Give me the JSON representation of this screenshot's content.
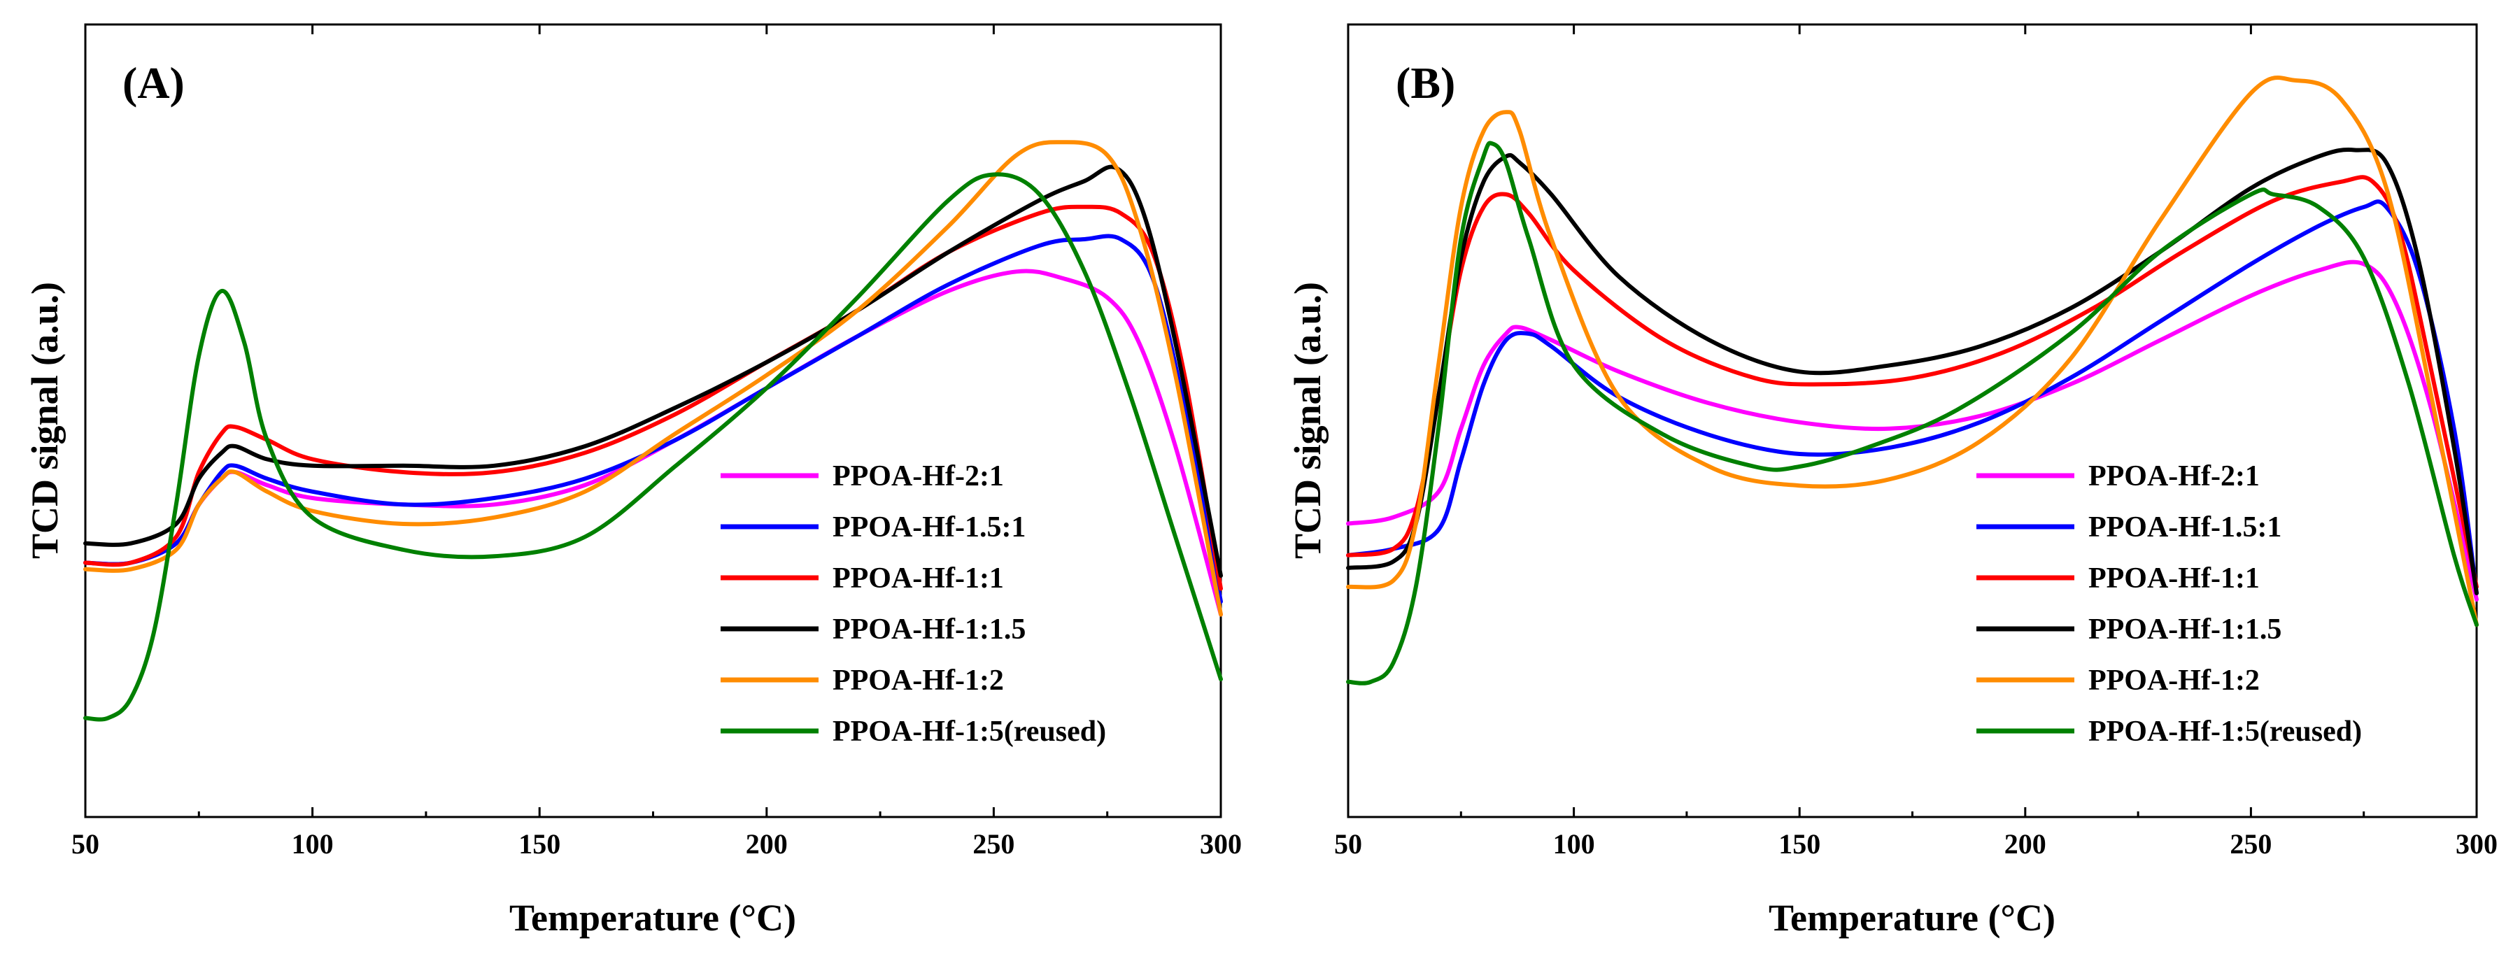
{
  "chart_data": [
    {
      "type": "line",
      "panel_label": "(A)",
      "xlabel": "Temperature (°C)",
      "ylabel": "TCD signal (a.u.)",
      "xlim": [
        50,
        300
      ],
      "ylim": [
        0,
        100
      ],
      "xticks": [
        50,
        100,
        150,
        200,
        250,
        300
      ],
      "xtick_labels": [
        "50",
        "100",
        "150",
        "200",
        "250",
        "300"
      ],
      "yticks_shown": false,
      "legend_position": "bottom-right",
      "series": [
        {
          "name": "PPOA-Hf-2:1",
          "color": "#ff00ff",
          "x": [
            50,
            60,
            70,
            75,
            80,
            83,
            90,
            100,
            120,
            140,
            160,
            180,
            200,
            220,
            240,
            255,
            265,
            275,
            282,
            290,
            300
          ],
          "y": [
            26,
            26,
            29,
            35,
            39,
            40,
            38,
            36,
            35,
            35,
            38,
            45,
            53,
            61,
            68,
            71,
            70,
            67,
            60,
            44,
            18
          ]
        },
        {
          "name": "PPOA-Hf-1.5:1",
          "color": "#0000ff",
          "x": [
            50,
            60,
            70,
            75,
            80,
            83,
            90,
            100,
            120,
            140,
            160,
            180,
            200,
            220,
            240,
            260,
            270,
            278,
            285,
            292,
            300
          ],
          "y": [
            26,
            26,
            29,
            35,
            40,
            41,
            39,
            37,
            35,
            36,
            39,
            45,
            53,
            61,
            69,
            75,
            76,
            76,
            70,
            50,
            20
          ]
        },
        {
          "name": "PPOA-Hf-1:1",
          "color": "#ff0000",
          "x": [
            50,
            60,
            70,
            75,
            80,
            83,
            90,
            100,
            120,
            140,
            160,
            180,
            200,
            220,
            240,
            260,
            270,
            278,
            285,
            292,
            300
          ],
          "y": [
            26,
            26,
            30,
            40,
            46,
            47,
            45,
            42,
            40,
            40,
            43,
            49,
            57,
            65,
            74,
            80,
            81,
            80,
            74,
            55,
            22
          ]
        },
        {
          "name": "PPOA-Hf-1:1.5",
          "color": "#000000",
          "x": [
            50,
            60,
            70,
            75,
            80,
            83,
            90,
            100,
            120,
            140,
            160,
            180,
            200,
            220,
            240,
            260,
            270,
            277,
            283,
            290,
            300
          ],
          "y": [
            29,
            29,
            32,
            39,
            43,
            44,
            42,
            41,
            41,
            41,
            44,
            50,
            57,
            65,
            74,
            82,
            85,
            87,
            80,
            60,
            24
          ]
        },
        {
          "name": "PPOA-Hf-1:2",
          "color": "#ff8c00",
          "x": [
            50,
            60,
            70,
            75,
            80,
            83,
            90,
            100,
            120,
            140,
            160,
            180,
            200,
            220,
            240,
            255,
            265,
            275,
            282,
            290,
            300
          ],
          "y": [
            25,
            25,
            28,
            35,
            39,
            40,
            37,
            34,
            32,
            33,
            37,
            46,
            55,
            65,
            78,
            89,
            91,
            89,
            78,
            55,
            18
          ]
        },
        {
          "name": "PPOA-Hf-1:5(reused)",
          "color": "#008000",
          "x": [
            50,
            55,
            60,
            65,
            70,
            75,
            80,
            85,
            90,
            100,
            120,
            140,
            160,
            180,
            200,
            220,
            240,
            250,
            260,
            270,
            280,
            290,
            300
          ],
          "y": [
            2,
            2,
            5,
            15,
            35,
            58,
            68,
            60,
            45,
            33,
            28,
            27,
            30,
            41,
            53,
            67,
            82,
            86,
            83,
            71,
            52,
            30,
            8
          ]
        }
      ]
    },
    {
      "type": "line",
      "panel_label": "(B)",
      "xlabel": "Temperature (°C)",
      "ylabel": "TCD signal (a.u.)",
      "xlim": [
        50,
        300
      ],
      "ylim": [
        0,
        100
      ],
      "xticks": [
        50,
        100,
        150,
        200,
        250,
        300
      ],
      "xtick_labels": [
        "50",
        "100",
        "150",
        "200",
        "250",
        "300"
      ],
      "yticks_shown": false,
      "legend_position": "bottom-right",
      "series": [
        {
          "name": "PPOA-Hf-2:1",
          "color": "#ff00ff",
          "x": [
            50,
            60,
            70,
            75,
            80,
            85,
            88,
            95,
            110,
            130,
            150,
            170,
            190,
            210,
            230,
            250,
            265,
            275,
            282,
            290,
            300
          ],
          "y": [
            30,
            31,
            35,
            45,
            55,
            60,
            61,
            59,
            54,
            49,
            46,
            45,
            47,
            52,
            59,
            66,
            70,
            71,
            65,
            48,
            18
          ]
        },
        {
          "name": "PPOA-Hf-1.5:1",
          "color": "#0000ff",
          "x": [
            50,
            60,
            70,
            75,
            80,
            85,
            90,
            95,
            110,
            130,
            150,
            170,
            190,
            210,
            230,
            250,
            265,
            275,
            280,
            287,
            295,
            300
          ],
          "y": [
            25,
            26,
            29,
            40,
            52,
            59,
            60,
            58,
            50,
            44,
            41,
            42,
            46,
            53,
            62,
            71,
            77,
            80,
            80,
            70,
            45,
            19
          ]
        },
        {
          "name": "PPOA-Hf-1:1",
          "color": "#ff0000",
          "x": [
            50,
            60,
            65,
            70,
            75,
            80,
            85,
            90,
            100,
            120,
            140,
            155,
            175,
            195,
            215,
            235,
            255,
            270,
            277,
            283,
            290,
            300
          ],
          "y": [
            25,
            26,
            32,
            50,
            70,
            80,
            82,
            79,
            70,
            59,
            53,
            52,
            53,
            57,
            64,
            73,
            81,
            84,
            84,
            76,
            54,
            20
          ]
        },
        {
          "name": "PPOA-Hf-1:1.5",
          "color": "#000000",
          "x": [
            50,
            60,
            65,
            70,
            75,
            80,
            85,
            88,
            95,
            110,
            130,
            150,
            170,
            190,
            210,
            230,
            250,
            265,
            273,
            280,
            287,
            295,
            300
          ],
          "y": [
            23,
            24,
            30,
            50,
            72,
            84,
            88,
            87,
            82,
            69,
            59,
            54,
            55,
            58,
            64,
            73,
            83,
            88,
            89,
            87,
            72,
            42,
            19
          ]
        },
        {
          "name": "PPOA-Hf-1:2",
          "color": "#ff8c00",
          "x": [
            50,
            60,
            65,
            70,
            75,
            80,
            85,
            88,
            95,
            110,
            130,
            150,
            170,
            190,
            210,
            230,
            250,
            260,
            270,
            280,
            290,
            300
          ],
          "y": [
            20,
            21,
            30,
            55,
            80,
            92,
            95,
            92,
            75,
            50,
            39,
            36,
            37,
            43,
            56,
            78,
            98,
            100,
            97,
            83,
            50,
            14
          ]
        },
        {
          "name": "PPOA-Hf-1:5(reused)",
          "color": "#008000",
          "x": [
            50,
            55,
            60,
            65,
            70,
            75,
            80,
            82,
            85,
            90,
            100,
            120,
            140,
            150,
            165,
            185,
            210,
            230,
            250,
            255,
            265,
            275,
            285,
            295,
            300
          ],
          "y": [
            5,
            5,
            8,
            20,
            45,
            75,
            88,
            90,
            87,
            75,
            55,
            44,
            39,
            39,
            42,
            48,
            60,
            73,
            82,
            82,
            80,
            72,
            52,
            25,
            14
          ]
        }
      ]
    }
  ]
}
